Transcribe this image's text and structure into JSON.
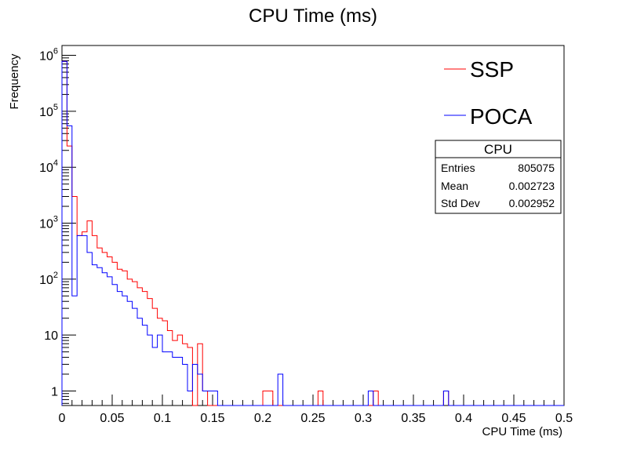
{
  "chart_data": {
    "type": "line",
    "title": "CPU Time (ms)",
    "xlabel": "CPU Time (ms)",
    "ylabel": "Frequency",
    "xlim": [
      0,
      0.5
    ],
    "ylim": [
      0.55,
      1500000
    ],
    "yscale": "log",
    "bin_width": 0.005,
    "x_ticks": [
      "0",
      "0.05",
      "0.1",
      "0.15",
      "0.2",
      "0.25",
      "0.3",
      "0.35",
      "0.4",
      "0.45",
      "0.5"
    ],
    "y_ticks": [
      {
        "base": "1",
        "exp": ""
      },
      {
        "base": "10",
        "exp": ""
      },
      {
        "base": "10",
        "exp": "2"
      },
      {
        "base": "10",
        "exp": "3"
      },
      {
        "base": "10",
        "exp": "4"
      },
      {
        "base": "10",
        "exp": "5"
      },
      {
        "base": "10",
        "exp": "6"
      }
    ],
    "legend_position": "top-right",
    "series": [
      {
        "name": "SSP",
        "color": "#ff0000",
        "values": [
          780000,
          24000,
          3000,
          600,
          700,
          1100,
          600,
          360,
          300,
          250,
          200,
          150,
          140,
          100,
          90,
          70,
          60,
          45,
          30,
          20,
          18,
          12,
          8,
          10,
          7,
          6,
          0,
          7,
          1,
          0,
          0,
          0,
          0,
          0,
          0,
          0,
          0,
          0,
          0,
          0,
          1,
          1,
          0,
          0,
          0,
          0,
          0,
          0,
          0,
          0,
          0,
          1,
          0,
          0,
          0,
          0,
          0,
          0,
          0,
          0,
          0,
          0,
          1,
          0,
          0,
          0,
          0,
          0,
          0,
          0,
          0,
          0,
          0,
          0,
          0,
          0,
          1,
          0,
          0,
          0,
          0,
          0,
          0,
          0,
          0,
          0,
          0,
          0,
          0,
          0,
          0,
          0,
          0,
          0,
          0,
          0,
          0,
          0,
          0,
          0
        ]
      },
      {
        "name": "POCA",
        "color": "#0000ff",
        "values": [
          780000,
          55000,
          50,
          600,
          600,
          300,
          180,
          160,
          130,
          110,
          80,
          60,
          50,
          40,
          30,
          20,
          15,
          10,
          6,
          10,
          5,
          5,
          4,
          4,
          3,
          1,
          3,
          2,
          1,
          1,
          1,
          0,
          0,
          0,
          0,
          0,
          0,
          0,
          0,
          0,
          0,
          0,
          0,
          2,
          0,
          0,
          0,
          0,
          0,
          0,
          0,
          0,
          0,
          0,
          0,
          0,
          0,
          0,
          0,
          0,
          0,
          1,
          0,
          0,
          0,
          0,
          0,
          0,
          0,
          0,
          0,
          0,
          0,
          0,
          0,
          0,
          1,
          0,
          0,
          0,
          0,
          0,
          0,
          0,
          0,
          0,
          0,
          0,
          0,
          0,
          0,
          0,
          0,
          0,
          0,
          0,
          0,
          0,
          0,
          0
        ]
      }
    ],
    "stats_box": {
      "title": "CPU",
      "rows": [
        {
          "label": "Entries",
          "value": "805075"
        },
        {
          "label": "Mean",
          "value": "0.002723"
        },
        {
          "label": "Std Dev",
          "value": "0.002952"
        }
      ]
    }
  }
}
